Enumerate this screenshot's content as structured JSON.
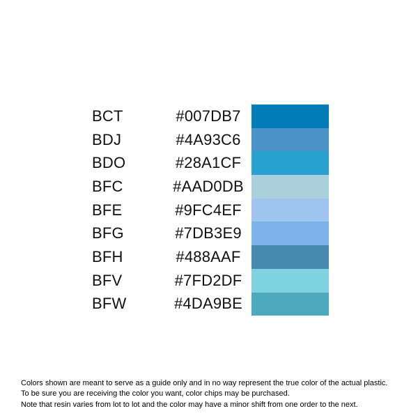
{
  "page": {
    "background_color": "#FFFFFF",
    "text_color": "#111111"
  },
  "chart_data": {
    "type": "table",
    "title": "",
    "columns": [
      "color_code",
      "hex_value",
      "swatch"
    ],
    "rows": [
      {
        "code": "BCT",
        "hex": "#007DB7"
      },
      {
        "code": "BDJ",
        "hex": "#4A93C6"
      },
      {
        "code": "BDO",
        "hex": "#28A1CF"
      },
      {
        "code": "BFC",
        "hex": "#AAD0DB"
      },
      {
        "code": "BFE",
        "hex": "#9FC4EF"
      },
      {
        "code": "BFG",
        "hex": "#7DB3E9"
      },
      {
        "code": "BFH",
        "hex": "#488AAF"
      },
      {
        "code": "BFV",
        "hex": "#7FD2DF"
      },
      {
        "code": "BFW",
        "hex": "#4DA9BE"
      }
    ],
    "layout": {
      "swatch_column": "right",
      "hex_alignment": "center",
      "code_alignment": "left"
    }
  },
  "disclaimer": {
    "line1": "Colors shown are meant to serve as a guide only and in no way represent the true color of the actual plastic.",
    "line2": "To be sure you are receiving the color you want, color chips may be purchased.",
    "line3": "Note that resin varies from lot to lot and the color may have a minor shift from one order to the next."
  }
}
